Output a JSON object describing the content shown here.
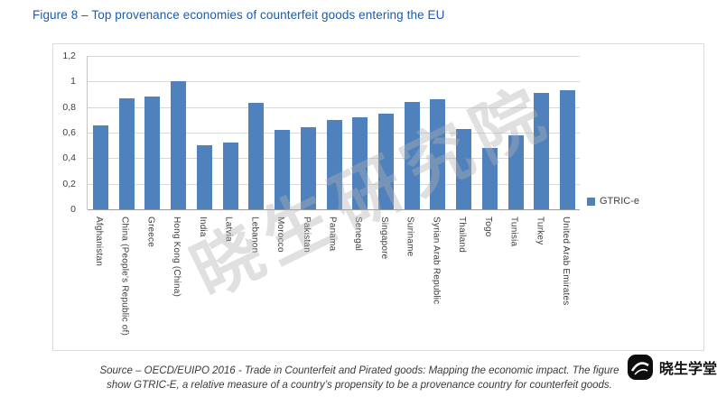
{
  "page": {
    "figure_title": "Figure 8 – Top provenance economies of counterfeit goods entering the EU"
  },
  "source": {
    "line1": "Source – OECD/EUIPO 2016 - Trade in Counterfeit and Pirated goods: Mapping the economic impact. The figure",
    "line2": "show GTRIC-E, a relative measure of a country’s propensity to be a provenance country for counterfeit goods."
  },
  "watermark": {
    "diagonal": "晓生研究院",
    "corner": "晓生学堂"
  },
  "chart_data": {
    "type": "bar",
    "title": "",
    "xlabel": "",
    "ylabel": "",
    "categories": [
      "Afghanistan",
      "China (People's Republic of)",
      "Greece",
      "Hong Kong (China)",
      "India",
      "Latvia",
      "Lebanon",
      "Morocco",
      "Pakistan",
      "Panama",
      "Senegal",
      "Singapore",
      "Suriname",
      "Syrian Arab Republic",
      "Thailand",
      "Togo",
      "Tunisia",
      "Turkey",
      "United Arab Emirates"
    ],
    "values": [
      0.66,
      0.87,
      0.88,
      1.0,
      0.5,
      0.52,
      0.83,
      0.62,
      0.64,
      0.7,
      0.72,
      0.75,
      0.84,
      0.86,
      0.63,
      0.48,
      0.58,
      0.91,
      0.93
    ],
    "ylim": [
      0,
      1.2
    ],
    "yticks": [
      "1,2",
      "1",
      "0,8",
      "0,6",
      "0,4",
      "0,2",
      "0"
    ],
    "grid": true,
    "bar_color": "#4F81BD",
    "legend_position": "right",
    "legend": [
      {
        "label": "GTRIC-e",
        "color": "#4F81BD"
      }
    ]
  }
}
